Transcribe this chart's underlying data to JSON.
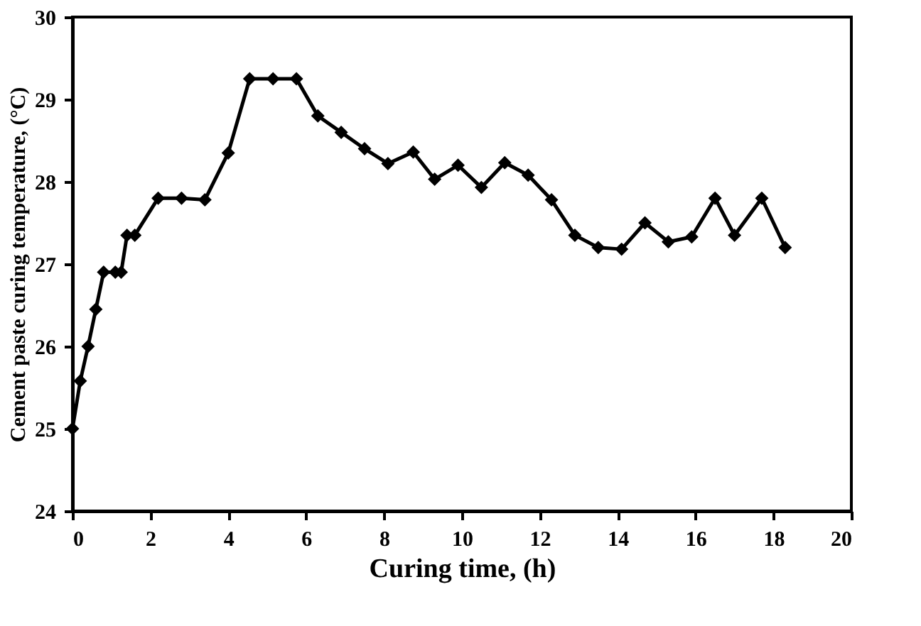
{
  "chart_data": {
    "type": "line",
    "xlabel": "Curing time, (h)",
    "ylabel": "Cement paste curing temperature, (°C)",
    "x": [
      0,
      0.2,
      0.4,
      0.6,
      0.8,
      1.1,
      1.25,
      1.4,
      1.6,
      2.2,
      2.8,
      3.4,
      4.0,
      4.55,
      5.15,
      5.75,
      6.3,
      6.9,
      7.5,
      8.1,
      8.75,
      9.3,
      9.9,
      10.5,
      11.1,
      11.7,
      12.3,
      12.9,
      13.5,
      14.1,
      14.7,
      15.3,
      15.9,
      16.5,
      17.0,
      17.7,
      18.3
    ],
    "series": [
      {
        "color": "#000000",
        "values": [
          25.0,
          25.58,
          26.0,
          26.45,
          26.9,
          26.9,
          26.9,
          27.35,
          27.35,
          27.8,
          27.8,
          27.78,
          28.35,
          29.25,
          29.25,
          29.25,
          28.8,
          28.6,
          28.4,
          28.22,
          28.36,
          28.03,
          28.2,
          27.93,
          28.23,
          28.08,
          27.78,
          27.35,
          27.2,
          27.18,
          27.5,
          27.27,
          27.33,
          27.8,
          27.35,
          27.8,
          27.2
        ]
      }
    ],
    "xlim": [
      0,
      20
    ],
    "xticks": [
      0,
      2,
      4,
      6,
      8,
      10,
      12,
      14,
      16,
      18,
      20
    ],
    "ylim": [
      24,
      30
    ],
    "yticks": [
      24,
      25,
      26,
      27,
      28,
      29,
      30
    ],
    "grid": false,
    "legend": false,
    "marker": "diamond",
    "line_style": "solid"
  }
}
